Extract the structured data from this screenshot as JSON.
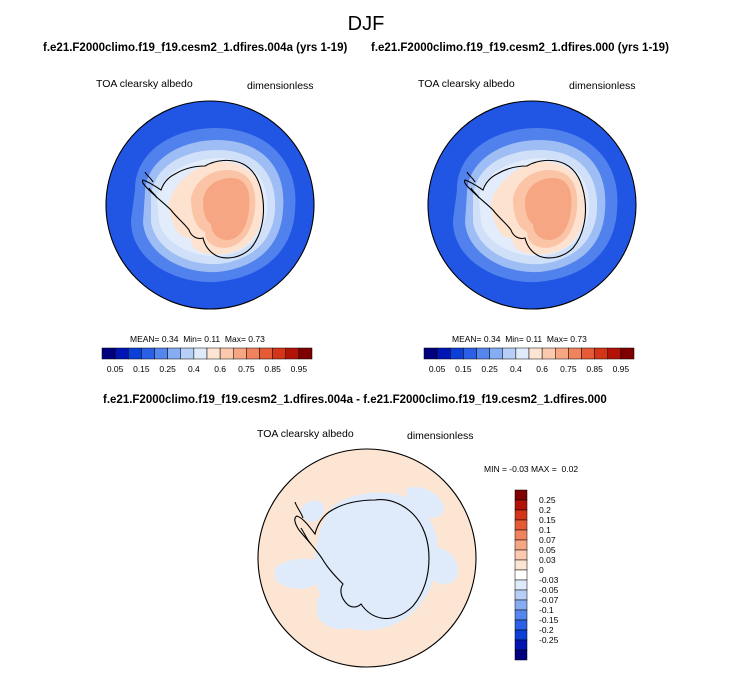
{
  "season": "DJF",
  "panels": [
    {
      "title": "f.e21.F2000climo.f19_f19.cesm2_1.dfires.004a (yrs 1-19)",
      "variable": "TOA clearsky albedo",
      "units": "dimensionless",
      "stats": {
        "mean_label": "MEAN=",
        "mean": "0.34",
        "min_label": "Min=",
        "min": "0.11",
        "max_label": "Max=",
        "max": "0.73"
      }
    },
    {
      "title": "f.e21.F2000climo.f19_f19.cesm2_1.dfires.000 (yrs 1-19)",
      "variable": "TOA clearsky albedo",
      "units": "dimensionless",
      "stats": {
        "mean_label": "MEAN=",
        "mean": "0.34",
        "min_label": "Min=",
        "min": "0.11",
        "max_label": "Max=",
        "max": "0.73"
      }
    }
  ],
  "abs_colorbar": {
    "colors": [
      "#00007f",
      "#0015b4",
      "#0b3fd8",
      "#2a5fe6",
      "#5586ee",
      "#86acf2",
      "#b7cef6",
      "#dfeafa",
      "#fde5d4",
      "#fbc9ad",
      "#f6a683",
      "#f0825d",
      "#e65a36",
      "#d43418",
      "#b21208",
      "#7f0000"
    ],
    "labels": [
      "0.05",
      "0.15",
      "0.25",
      "0.4",
      "0.6",
      "0.75",
      "0.85",
      "0.95"
    ]
  },
  "diff_panel": {
    "title": "f.e21.F2000climo.f19_f19.cesm2_1.dfires.004a - f.e21.F2000climo.f19_f19.cesm2_1.dfires.000",
    "variable": "TOA clearsky albedo",
    "units": "dimensionless",
    "min_label": "MIN =",
    "min": "-0.03",
    "max_label": "MAX =",
    "max": "0.02"
  },
  "diff_colorbar": {
    "colors": [
      "#7f0000",
      "#b21208",
      "#d43418",
      "#e65a36",
      "#f0825d",
      "#f6a683",
      "#fbc9ad",
      "#fde5d4",
      "#ffffff",
      "#dfeafa",
      "#b7cef6",
      "#86acf2",
      "#5586ee",
      "#2a5fe6",
      "#0b3fd8",
      "#0015b4",
      "#00007f"
    ],
    "labels": [
      "0.25",
      "0.2",
      "0.15",
      "0.1",
      "0.07",
      "0.05",
      "0.03",
      "0",
      "-0.03",
      "-0.05",
      "-0.07",
      "-0.1",
      "-0.15",
      "-0.2",
      "-0.25"
    ]
  },
  "map_colors": {
    "ocean": "#2155e4",
    "ocean_band1": "#5081ec",
    "ocean_band2": "#9ebdf4",
    "ocean_band3": "#cfe0f8",
    "coast_band": "#e3ecfa",
    "land_rim": "#fde2cf",
    "land_mid": "#fbc4a6",
    "land_interior": "#f6a683",
    "diff_ocean": "#fde5d4",
    "diff_ice": "#dfeafa"
  }
}
